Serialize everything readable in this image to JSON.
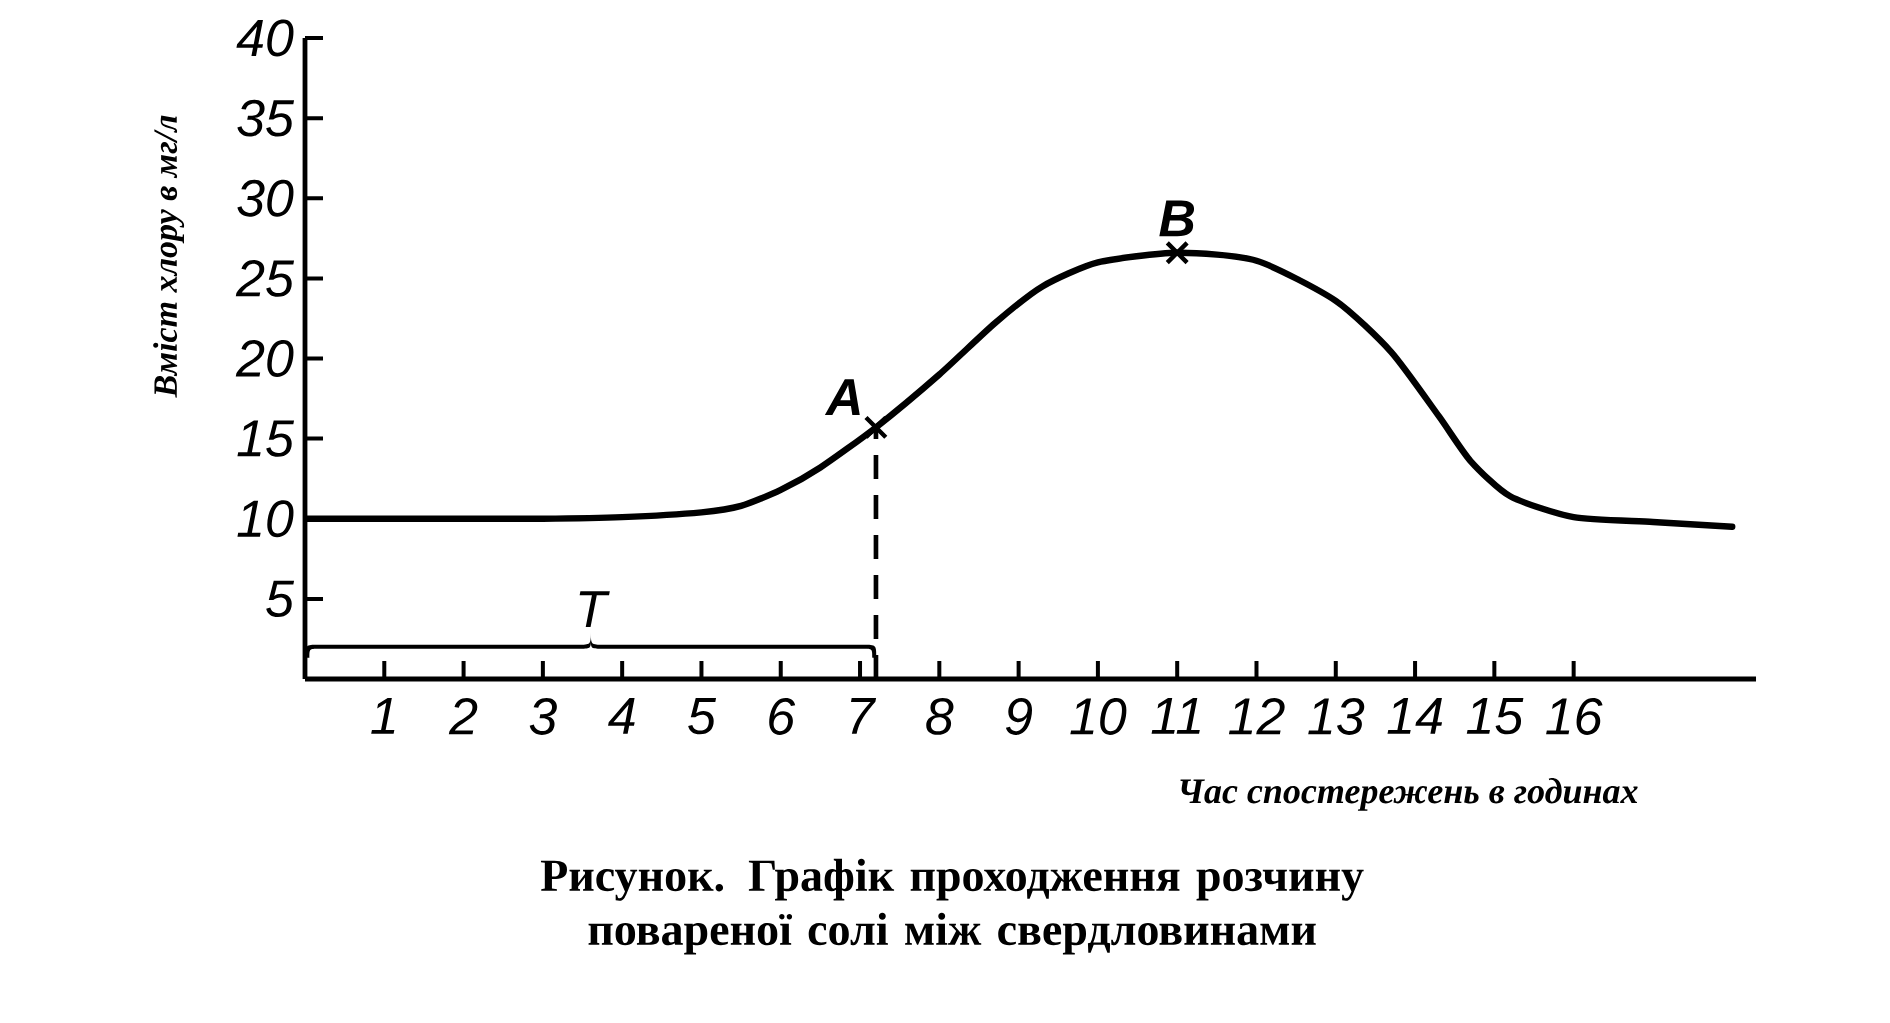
{
  "chart_data": {
    "type": "line",
    "title": "Рисунок. Графік проходження розчину повареної солі між свердловинами",
    "xlabel": "Час спостережень в годинах",
    "ylabel": "Вміст хлору в мг/л",
    "series": [
      {
        "color": "#000000",
        "marker": "none",
        "x": [
          0,
          1,
          2,
          3,
          4,
          5,
          5.5,
          6,
          6.5,
          7.2,
          8,
          8.7,
          9.3,
          10,
          11,
          12,
          13,
          13.7,
          14.3,
          14.7,
          15.2,
          16,
          17,
          18
        ],
        "values": [
          10,
          10,
          10,
          10,
          10.1,
          10.4,
          10.8,
          11.8,
          13.2,
          15.7,
          19,
          22.2,
          24.5,
          26,
          26.6,
          26.1,
          23.6,
          20.4,
          16.4,
          13.6,
          11.4,
          10.1,
          9.8,
          9.5
        ]
      },
      {
        "type": "scatter",
        "color": "#000000",
        "marker": "cross",
        "x": [
          7.2,
          11
        ],
        "values": [
          15.7,
          26.6
        ]
      }
    ],
    "annotations": [
      {
        "text": "A",
        "x": 7.2,
        "y": 15.7
      },
      {
        "text": "B",
        "x": 11,
        "y": 26.6
      },
      "T"
    ],
    "ref_lines": [
      {
        "axis": "x",
        "value": 7.2,
        "line_style": "dashed"
      }
    ],
    "xlim": [
      0,
      18.3
    ],
    "ylim": [
      0,
      40
    ],
    "xticks": [
      1,
      2,
      3,
      4,
      5,
      6,
      7,
      8,
      9,
      10,
      11,
      12,
      13,
      14,
      15,
      16
    ],
    "yticks": [
      5,
      10,
      15,
      20,
      25,
      30,
      35,
      40
    ],
    "grid": false
  }
}
